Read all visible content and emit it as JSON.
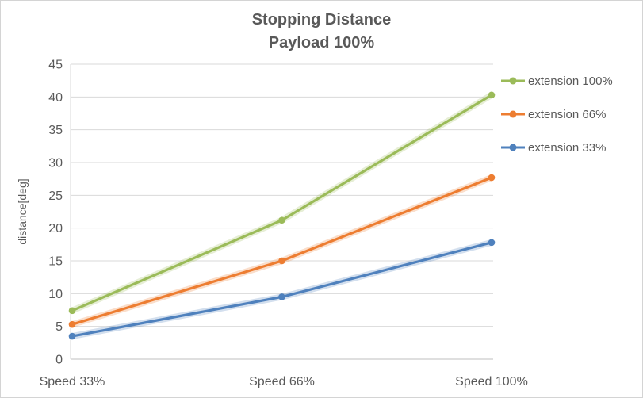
{
  "chart_data": {
    "type": "line",
    "title": "Stopping Distance",
    "subtitle": "Payload 100%",
    "xlabel": "",
    "ylabel": "distance[deg]",
    "categories": [
      "Speed 33%",
      "Speed 66%",
      "Speed 100%"
    ],
    "series": [
      {
        "name": "extension 100%",
        "color": "#9BBB59",
        "values": [
          7.4,
          21.2,
          40.3
        ]
      },
      {
        "name": "extension 66%",
        "color": "#ED7D31",
        "values": [
          5.3,
          15.0,
          27.7
        ]
      },
      {
        "name": "extension 33%",
        "color": "#4F81BD",
        "values": [
          3.5,
          9.5,
          17.8
        ]
      }
    ],
    "ylim": [
      0,
      45
    ],
    "ytick_step": 5,
    "grid": true,
    "legend_position": "right",
    "colors": {
      "text": "#595959",
      "gridline": "#D9D9D9",
      "axis": "#BFBFBF",
      "background": "#FFFFFF"
    }
  }
}
